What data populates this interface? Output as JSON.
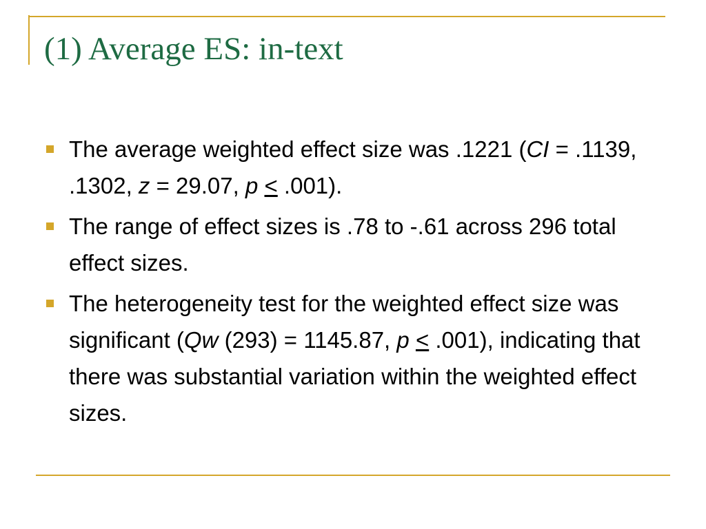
{
  "title": "(1) Average ES: in-text",
  "bullets": [
    {
      "runs": [
        {
          "text": "The average weighted effect size was .1221 ("
        },
        {
          "text": "CI",
          "style": "italic"
        },
        {
          "text": " = .1139, .1302, "
        },
        {
          "text": "z",
          "style": "italic"
        },
        {
          "text": " = 29.07, "
        },
        {
          "text": "p",
          "style": "italic"
        },
        {
          "text": " "
        },
        {
          "text": "<",
          "style": "underline"
        },
        {
          "text": " .001)."
        }
      ]
    },
    {
      "runs": [
        {
          "text": "The range of effect sizes is .78 to -.61 across 296 total effect sizes."
        }
      ]
    },
    {
      "runs": [
        {
          "text": "The heterogeneity test for the weighted effect size was significant ("
        },
        {
          "text": "Qw",
          "style": "italic"
        },
        {
          "text": " (293) = 1145.87, "
        },
        {
          "text": "p",
          "style": "italic"
        },
        {
          "text": " "
        },
        {
          "text": "<",
          "style": "underline"
        },
        {
          "text": " .001), indicating that there was substantial variation within the weighted effect sizes."
        }
      ]
    }
  ]
}
